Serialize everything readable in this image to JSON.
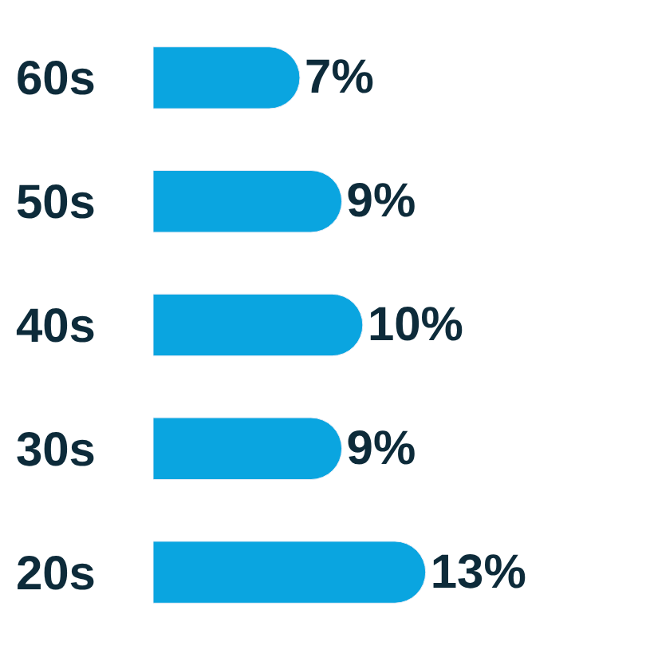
{
  "chart_data": {
    "type": "bar",
    "orientation": "horizontal",
    "categories": [
      "60s",
      "50s",
      "40s",
      "30s",
      "20s"
    ],
    "values": [
      7,
      9,
      10,
      9,
      13
    ],
    "value_labels": [
      "7%",
      "9%",
      "10%",
      "9%",
      "13%"
    ],
    "color": "#0aa5e0",
    "legend": false
  }
}
